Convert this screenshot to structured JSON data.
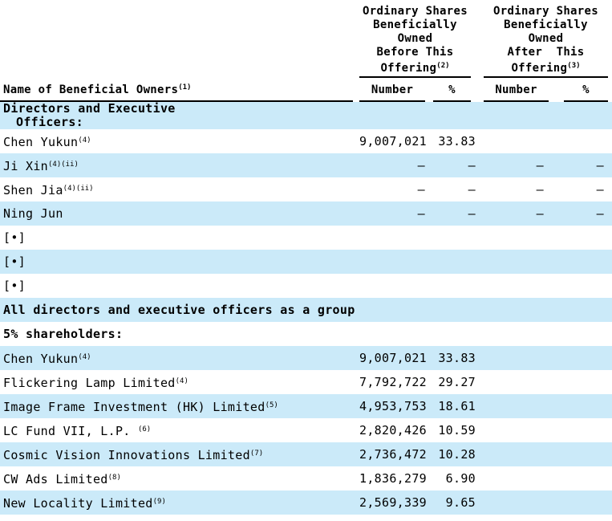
{
  "page": {
    "stripe_color": "#CBEAF9",
    "text_color": "#000000",
    "background": "#ffffff"
  },
  "header": {
    "groups": [
      {
        "lines": [
          "Ordinary Shares",
          "Beneficially",
          "Owned",
          "Before This"
        ],
        "offering_label": "Offering",
        "footnote": "(2)"
      },
      {
        "lines": [
          "Ordinary Shares",
          "Beneficially",
          "Owned",
          "After  This"
        ],
        "offering_label": "Offering",
        "footnote": "(3)"
      }
    ],
    "name_column": {
      "label": "Name of Beneficial Owners",
      "footnote": "(1)"
    },
    "sub_columns": {
      "before_number": "Number",
      "before_pct": "%",
      "after_number": "Number",
      "after_pct": "%"
    }
  },
  "rows": [
    {
      "label": "Directors and Executive",
      "label2": "Officers:",
      "bold": true,
      "shaded": true,
      "cells": [
        "",
        "",
        "",
        ""
      ]
    },
    {
      "label": "Chen Yukun",
      "sup": "(4)",
      "bold": false,
      "shaded": false,
      "cells": [
        "9,007,021",
        "33.83",
        "",
        ""
      ]
    },
    {
      "label": "Ji Xin",
      "sup": "(4)(ii)",
      "bold": false,
      "shaded": true,
      "cells": [
        "—",
        "—",
        "—",
        "—"
      ]
    },
    {
      "label": "Shen Jia",
      "sup": "(4)(ii)",
      "bold": false,
      "shaded": false,
      "cells": [
        "—",
        "—",
        "—",
        "—"
      ]
    },
    {
      "label": "Ning Jun",
      "bold": false,
      "shaded": true,
      "cells": [
        "—",
        "—",
        "—",
        "—"
      ]
    },
    {
      "label": "[•]",
      "bold": false,
      "shaded": false,
      "cells": [
        "",
        "",
        "",
        ""
      ]
    },
    {
      "label": "[•]",
      "bold": false,
      "shaded": true,
      "cells": [
        "",
        "",
        "",
        ""
      ]
    },
    {
      "label": "[•]",
      "bold": false,
      "shaded": false,
      "cells": [
        "",
        "",
        "",
        ""
      ]
    },
    {
      "label": "All directors and executive officers as a group",
      "bold": true,
      "shaded": true,
      "cells": [
        "",
        "",
        "",
        ""
      ]
    },
    {
      "label": "5% shareholders:",
      "bold": true,
      "shaded": false,
      "cells": [
        "",
        "",
        "",
        ""
      ]
    },
    {
      "label": "Chen Yukun",
      "sup": "(4)",
      "bold": false,
      "shaded": true,
      "cells": [
        "9,007,021",
        "33.83",
        "",
        ""
      ]
    },
    {
      "label": "Flickering Lamp Limited",
      "sup": "(4)",
      "bold": false,
      "shaded": false,
      "cells": [
        "7,792,722",
        "29.27",
        "",
        ""
      ]
    },
    {
      "label": "Image Frame Investment (HK) Limited",
      "sup": "(5)",
      "bold": false,
      "shaded": true,
      "cells": [
        "4,953,753",
        "18.61",
        "",
        ""
      ]
    },
    {
      "label": "LC Fund VII, L.P. ",
      "sup": "(6)",
      "bold": false,
      "shaded": false,
      "cells": [
        "2,820,426",
        "10.59",
        "",
        ""
      ]
    },
    {
      "label": "Cosmic Vision Innovations Limited",
      "sup": "(7)",
      "bold": false,
      "shaded": true,
      "cells": [
        "2,736,472",
        "10.28",
        "",
        ""
      ]
    },
    {
      "label": "CW Ads Limited",
      "sup": "(8)",
      "bold": false,
      "shaded": false,
      "cells": [
        "1,836,279",
        "6.90",
        "",
        ""
      ]
    },
    {
      "label": "New Locality Limited",
      "sup": "(9)",
      "bold": false,
      "shaded": true,
      "cells": [
        "2,569,339",
        "9.65",
        "",
        ""
      ]
    }
  ]
}
